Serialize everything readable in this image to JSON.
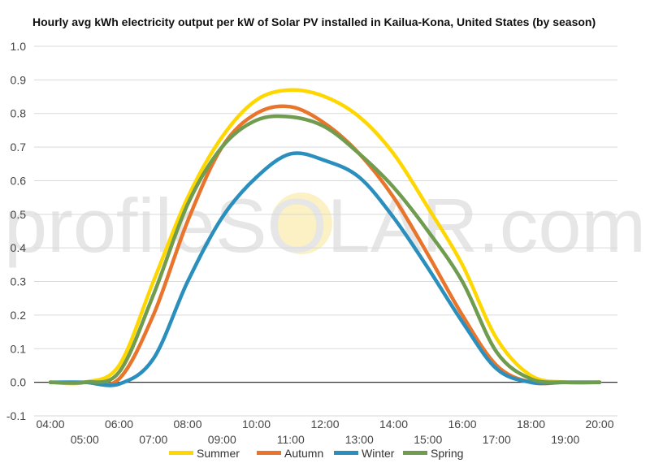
{
  "chart_data": {
    "type": "line",
    "title": "Hourly avg kWh electricity output per kW of Solar PV installed in Kailua-Kona, United States (by season)",
    "xlabel": "",
    "ylabel": "",
    "x": [
      "04:00",
      "05:00",
      "06:00",
      "07:00",
      "08:00",
      "09:00",
      "10:00",
      "11:00",
      "12:00",
      "13:00",
      "14:00",
      "15:00",
      "16:00",
      "17:00",
      "18:00",
      "19:00",
      "20:00"
    ],
    "ylim": [
      -0.1,
      1.0
    ],
    "yticks": [
      "1.0",
      "0.9",
      "0.8",
      "0.7",
      "0.6",
      "0.5",
      "0.4",
      "0.3",
      "0.2",
      "0.1",
      "0.0",
      "-0.1"
    ],
    "grid": true,
    "legend_position": "bottom",
    "series": [
      {
        "name": "Summer",
        "color": "#ffd700",
        "values": [
          0.0,
          0.0,
          0.05,
          0.3,
          0.55,
          0.73,
          0.84,
          0.87,
          0.85,
          0.79,
          0.68,
          0.52,
          0.35,
          0.13,
          0.02,
          0.0,
          0.0
        ]
      },
      {
        "name": "Autumn",
        "color": "#e8752b",
        "values": [
          0.0,
          0.0,
          0.01,
          0.2,
          0.48,
          0.7,
          0.8,
          0.82,
          0.77,
          0.68,
          0.55,
          0.38,
          0.2,
          0.05,
          0.0,
          0.0,
          0.0
        ]
      },
      {
        "name": "Winter",
        "color": "#2a8fbd",
        "values": [
          0.0,
          0.0,
          -0.005,
          0.07,
          0.3,
          0.49,
          0.61,
          0.68,
          0.66,
          0.61,
          0.49,
          0.34,
          0.18,
          0.04,
          0.0,
          0.0,
          0.0
        ]
      },
      {
        "name": "Spring",
        "color": "#6f9c4f",
        "values": [
          0.0,
          0.0,
          0.03,
          0.26,
          0.53,
          0.7,
          0.78,
          0.79,
          0.76,
          0.68,
          0.58,
          0.45,
          0.3,
          0.09,
          0.01,
          0.0,
          0.0
        ]
      }
    ]
  }
}
